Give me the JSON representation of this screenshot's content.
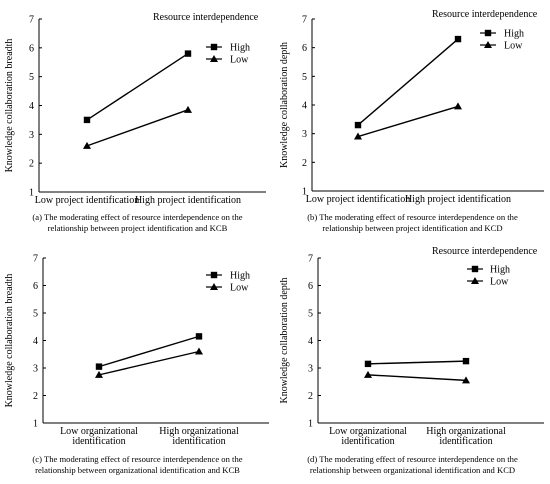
{
  "chart_data": [
    {
      "type": "line",
      "legend_title": "Resource interdependence",
      "legend_position": "top-right",
      "xlabel": "",
      "ylabel": "Knowledge collaboration breadth",
      "categories": [
        [
          "Low project identification"
        ],
        [
          "High project identification"
        ]
      ],
      "ylim": [
        1,
        7
      ],
      "yticks": [
        "1",
        "2",
        "3",
        "4",
        "5",
        "6",
        "7"
      ],
      "grid": false,
      "series": [
        {
          "name": "High",
          "marker": "square",
          "values": [
            3.5,
            5.8
          ]
        },
        {
          "name": "Low",
          "marker": "triangle",
          "values": [
            2.6,
            3.85
          ]
        }
      ],
      "caption": [
        "(a) The moderating effect of resource interdependence on the",
        "relationship between project identification and KCB"
      ]
    },
    {
      "type": "line",
      "legend_title": "Resource interdependence",
      "legend_position": "top-right",
      "xlabel": "",
      "ylabel": "Knowledge collaboration depth",
      "categories": [
        [
          "Low project identification"
        ],
        [
          "High project identification"
        ]
      ],
      "ylim": [
        1,
        7
      ],
      "yticks": [
        "1",
        "2",
        "3",
        "4",
        "5",
        "6",
        "7"
      ],
      "grid": false,
      "series": [
        {
          "name": "High",
          "marker": "square",
          "values": [
            3.3,
            6.3
          ]
        },
        {
          "name": "Low",
          "marker": "triangle",
          "values": [
            2.9,
            3.95
          ]
        }
      ],
      "caption": [
        "(b) The moderating effect of resource interdependence on the",
        "relationship between project identification and KCD"
      ]
    },
    {
      "type": "line",
      "legend_title": "",
      "legend_position": "top-right",
      "xlabel": "",
      "ylabel": "Knowledge collaboration breadth",
      "categories": [
        [
          "Low organizational",
          "identification"
        ],
        [
          "High organizational",
          "identification"
        ]
      ],
      "ylim": [
        1,
        7
      ],
      "yticks": [
        "1",
        "2",
        "3",
        "4",
        "5",
        "6",
        "7"
      ],
      "grid": false,
      "series": [
        {
          "name": "High",
          "marker": "square",
          "values": [
            3.05,
            4.15
          ]
        },
        {
          "name": "Low",
          "marker": "triangle",
          "values": [
            2.75,
            3.6
          ]
        }
      ],
      "caption": [
        "(c) The moderating effect of resource interdependence on the",
        "relationship between organizational identification and KCB"
      ]
    },
    {
      "type": "line",
      "legend_title": "Resource interdependence",
      "legend_position": "top-right",
      "xlabel": "",
      "ylabel": "Knowledge collaboration depth",
      "categories": [
        [
          "Low organizational",
          "identification"
        ],
        [
          "High organizational",
          "identification"
        ]
      ],
      "ylim": [
        1,
        7
      ],
      "yticks": [
        "1",
        "2",
        "3",
        "4",
        "5",
        "6",
        "7"
      ],
      "grid": false,
      "series": [
        {
          "name": "High",
          "marker": "square",
          "values": [
            3.15,
            3.25
          ]
        },
        {
          "name": "Low",
          "marker": "triangle",
          "values": [
            2.75,
            2.55
          ]
        }
      ],
      "caption": [
        "(d) The moderating effect of resource interdependence on the",
        "relationship between organizational identification and KCD"
      ]
    }
  ]
}
